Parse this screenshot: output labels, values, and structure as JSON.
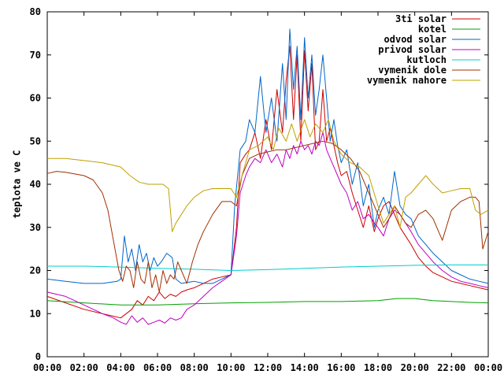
{
  "chart_data": {
    "type": "line",
    "title": "",
    "xlabel": "",
    "ylabel": "teplota ve C",
    "xlim": [
      0,
      24
    ],
    "ylim": [
      0,
      80
    ],
    "x_ticks": [
      "00:00",
      "02:00",
      "04:00",
      "06:00",
      "08:00",
      "10:00",
      "12:00",
      "14:00",
      "16:00",
      "18:00",
      "20:00",
      "22:00",
      "00:00"
    ],
    "y_ticks": [
      0,
      10,
      20,
      30,
      40,
      50,
      60,
      70,
      80
    ],
    "grid": false,
    "legend_position": "top-right",
    "series": [
      {
        "name": "3ti solar",
        "color": "#cc0000",
        "x": [
          0,
          1,
          2,
          3,
          3.5,
          4,
          4.3,
          4.6,
          4.9,
          5.2,
          5.5,
          5.8,
          6.1,
          6.4,
          6.7,
          7,
          7.3,
          7.6,
          8,
          8.5,
          9,
          9.5,
          10,
          10.3,
          10.5,
          10.8,
          11,
          11.3,
          11.6,
          11.9,
          12.2,
          12.5,
          12.8,
          13,
          13.2,
          13.4,
          13.6,
          13.8,
          14,
          14.2,
          14.4,
          14.6,
          14.8,
          15,
          15.2,
          15.4,
          15.6,
          15.8,
          16,
          16.3,
          16.6,
          16.9,
          17.2,
          17.5,
          17.8,
          18,
          18.3,
          18.6,
          18.9,
          19.2,
          19.5,
          19.8,
          20.2,
          20.6,
          21,
          21.5,
          22,
          22.5,
          23,
          23.5,
          24
        ],
        "y": [
          14,
          12.5,
          11,
          10,
          9.5,
          9,
          10,
          11,
          13,
          12,
          14,
          13,
          15,
          13.5,
          14.5,
          14,
          15,
          15.5,
          16,
          17,
          18,
          18.5,
          19,
          30,
          45,
          47,
          48,
          52,
          46,
          55,
          48,
          62,
          52,
          64,
          72,
          55,
          70,
          50,
          71,
          57,
          68,
          48,
          50,
          62,
          50,
          53,
          49,
          45,
          42,
          43,
          38,
          34,
          30,
          35,
          29,
          32,
          35,
          36,
          33,
          30,
          28,
          26,
          23,
          21,
          19.5,
          18.5,
          17.5,
          17,
          16.5,
          16,
          15.5
        ]
      },
      {
        "name": "kotel",
        "color": "#00a000",
        "x": [
          0,
          2,
          4,
          6,
          8,
          10,
          12,
          14,
          16,
          18,
          19,
          20,
          21,
          22,
          23,
          24
        ],
        "y": [
          13,
          12.5,
          12,
          12,
          12.3,
          12.5,
          12.6,
          12.8,
          12.8,
          13,
          13.5,
          13.5,
          13,
          12.8,
          12.6,
          12.5
        ]
      },
      {
        "name": "odvod solar",
        "color": "#0066cc",
        "x": [
          0,
          1,
          2,
          3,
          3.8,
          4,
          4.2,
          4.4,
          4.6,
          4.8,
          5,
          5.2,
          5.4,
          5.6,
          5.8,
          6,
          6.2,
          6.5,
          6.8,
          7,
          7.3,
          7.6,
          8,
          8.5,
          9,
          9.5,
          10,
          10.2,
          10.5,
          10.8,
          11,
          11.3,
          11.6,
          11.9,
          12.2,
          12.5,
          12.8,
          13,
          13.2,
          13.4,
          13.6,
          13.8,
          14,
          14.2,
          14.4,
          14.6,
          14.8,
          15,
          15.2,
          15.4,
          15.6,
          15.8,
          16,
          16.3,
          16.6,
          16.9,
          17.2,
          17.5,
          17.8,
          18,
          18.3,
          18.6,
          18.9,
          19.2,
          19.5,
          19.8,
          20.2,
          20.6,
          21,
          21.5,
          22,
          22.5,
          23,
          23.5,
          24
        ],
        "y": [
          18,
          17.5,
          17,
          17,
          17.5,
          18,
          28,
          22,
          25,
          20,
          26,
          22,
          24,
          20,
          23,
          21,
          22,
          24,
          23,
          18,
          17,
          17.2,
          17.5,
          17,
          17,
          18,
          19,
          35,
          48,
          50,
          55,
          52,
          65,
          52,
          60,
          50,
          68,
          55,
          76,
          62,
          72,
          55,
          74,
          60,
          70,
          56,
          62,
          70,
          60,
          50,
          55,
          49,
          45,
          48,
          40,
          45,
          35,
          40,
          30,
          34,
          37,
          33,
          43,
          35,
          33,
          32,
          28,
          26,
          24,
          22,
          20,
          19,
          18,
          17.5,
          17
        ]
      },
      {
        "name": "privod solar",
        "color": "#c000c0",
        "x": [
          0,
          1,
          2,
          3,
          3.6,
          4,
          4.3,
          4.6,
          4.9,
          5.2,
          5.5,
          5.8,
          6.1,
          6.4,
          6.7,
          7,
          7.3,
          7.6,
          8,
          8.5,
          9,
          9.5,
          10,
          10.3,
          10.5,
          10.8,
          11,
          11.3,
          11.6,
          11.9,
          12.2,
          12.5,
          12.8,
          13,
          13.2,
          13.4,
          13.6,
          13.8,
          14,
          14.2,
          14.4,
          14.6,
          14.8,
          15,
          15.2,
          15.4,
          15.6,
          15.8,
          16,
          16.3,
          16.6,
          16.9,
          17.2,
          17.5,
          17.8,
          18,
          18.3,
          18.6,
          18.9,
          19.2,
          19.5,
          19.8,
          20.2,
          20.6,
          21,
          21.5,
          22,
          22.5,
          23,
          23.5,
          24
        ],
        "y": [
          15,
          14,
          12,
          10,
          9,
          8,
          7.5,
          9.5,
          8,
          9,
          7.5,
          8,
          8.5,
          7.8,
          9,
          8.5,
          9,
          11,
          12,
          14,
          16,
          17.5,
          19,
          28,
          38,
          42,
          44,
          46,
          45,
          48,
          45,
          47,
          44,
          48,
          46,
          49,
          47,
          50,
          48,
          49,
          47,
          50,
          49,
          52,
          48,
          46,
          44,
          42,
          40,
          38,
          34,
          36,
          32,
          33,
          31,
          30,
          28,
          32,
          34,
          33,
          31,
          29,
          26,
          24,
          22,
          20,
          18.5,
          17.5,
          17,
          16.5,
          16
        ]
      },
      {
        "name": "kutloch",
        "color": "#00cccc",
        "x": [
          0,
          2,
          4,
          6,
          8,
          10,
          12,
          14,
          16,
          18,
          20,
          22,
          24
        ],
        "y": [
          21,
          21,
          20.8,
          20.5,
          20.3,
          20,
          20.2,
          20.5,
          20.8,
          21,
          21.2,
          21.3,
          21.3
        ]
      },
      {
        "name": "vymenik dole",
        "color": "#a03000",
        "x": [
          0,
          0.5,
          1,
          2,
          2.5,
          3,
          3.3,
          3.6,
          3.9,
          4.1,
          4.3,
          4.5,
          4.7,
          4.9,
          5.1,
          5.3,
          5.5,
          5.7,
          5.9,
          6.1,
          6.3,
          6.5,
          6.7,
          6.9,
          7.1,
          7.3,
          7.6,
          7.9,
          8.2,
          8.5,
          9,
          9.5,
          10,
          10.3,
          10.6,
          11,
          11.5,
          12,
          12.5,
          13,
          13.5,
          14,
          14.5,
          15,
          15.5,
          16,
          16.5,
          17,
          17.5,
          18,
          18.3,
          18.6,
          18.9,
          19.2,
          19.5,
          19.8,
          20.2,
          20.6,
          21,
          21.5,
          22,
          22.5,
          23,
          23.3,
          23.5,
          23.7,
          24
        ],
        "y": [
          42.5,
          43,
          42.8,
          42,
          41,
          38,
          34,
          27,
          20,
          17.5,
          21,
          20,
          16,
          22,
          18,
          17,
          22,
          16,
          19,
          15,
          20,
          17,
          19,
          18,
          22,
          20,
          17,
          22,
          26,
          29,
          33,
          36,
          36,
          35,
          42,
          46,
          47,
          47.5,
          48,
          48,
          48.5,
          49,
          49.5,
          50,
          49.5,
          48,
          46,
          43,
          38,
          33,
          30,
          32,
          35,
          33,
          31,
          30,
          33,
          34,
          32,
          27,
          34,
          36,
          37,
          37,
          36,
          25,
          29
        ]
      },
      {
        "name": "vymenik nahore",
        "color": "#c0a000",
        "x": [
          0,
          1,
          2,
          3,
          3.5,
          4,
          4.5,
          5,
          5.5,
          6,
          6.3,
          6.6,
          6.8,
          7,
          7.3,
          7.6,
          8,
          8.5,
          9,
          9.5,
          10,
          10.3,
          10.6,
          11,
          11.5,
          12,
          12.3,
          12.6,
          13,
          13.3,
          13.6,
          14,
          14.3,
          14.6,
          15,
          15.3,
          15.6,
          16,
          16.5,
          17,
          17.5,
          18,
          18.3,
          18.6,
          18.9,
          19.2,
          19.5,
          19.8,
          20.2,
          20.6,
          21,
          21.5,
          22,
          22.5,
          23,
          23.3,
          23.6,
          24
        ],
        "y": [
          46,
          46,
          45.5,
          45,
          44.5,
          44,
          42,
          40.5,
          40,
          40,
          40,
          39,
          29,
          31,
          33,
          35,
          37,
          38.5,
          39,
          39,
          39,
          37,
          42,
          48,
          49,
          51,
          48,
          53,
          50,
          54,
          50,
          55,
          51,
          54,
          52,
          55,
          50,
          47,
          45,
          44,
          42,
          35,
          31,
          33,
          35,
          30,
          37,
          38,
          40,
          42,
          40,
          38,
          38.5,
          39,
          39,
          34,
          33,
          34
        ]
      }
    ]
  }
}
